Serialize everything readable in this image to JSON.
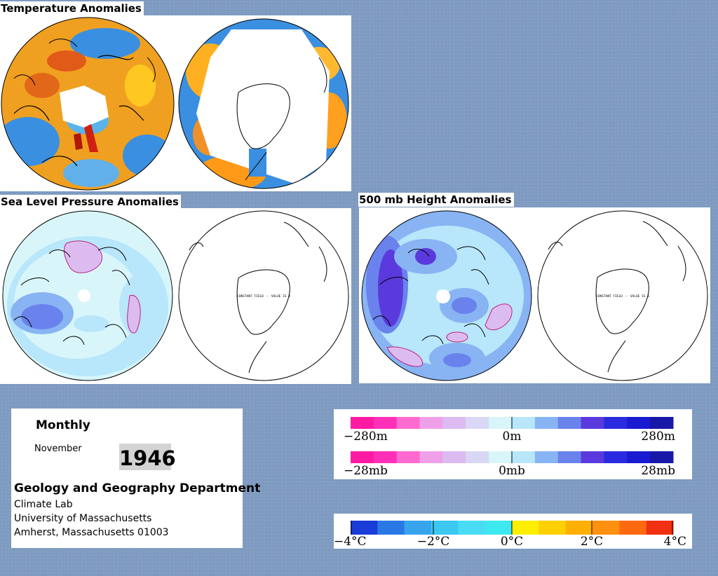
{
  "panels": {
    "temperature": {
      "title": "Temperature Anomalies"
    },
    "slp": {
      "title": "Sea Level Pressure Anomalies",
      "south_note": "CONSTANT FIELD -- VALUE IS 0"
    },
    "height500": {
      "title": "500 mb Height Anomalies",
      "south_note": "CONSTANT FIELD -- VALUE IS 0"
    }
  },
  "info": {
    "period": "Monthly",
    "month": "November",
    "year": "1946",
    "department": "Geology and Geography Department",
    "lines": [
      "Climate Lab",
      "University of Massachusetts",
      "Amherst, Massachusetts 01003"
    ]
  },
  "legends": {
    "height": {
      "min_label": "−280m",
      "mid_label": "0m",
      "max_label": "280m"
    },
    "pressure": {
      "min_label": "−28mb",
      "mid_label": "0mb",
      "max_label": "28mb"
    },
    "temperature": {
      "labels": [
        "−4°C",
        "−2°C",
        "0°C",
        "2°C",
        "4°C"
      ]
    }
  },
  "colors": {
    "page_background": "#7e9ac0",
    "neg_temp": "#3a8fe0",
    "pos_temp": "#f0a020",
    "hot": "#e03010",
    "cool_pink": "#ff1fa0",
    "cool_lavender": "#cbb8ea",
    "neutral_cyan": "#d8f6fa",
    "blue_light": "#8fb8f2",
    "blue_dark": "#2020d0"
  },
  "pressure_scale_colors": [
    "#ff1aa4",
    "#ff2fb8",
    "#ff6ad0",
    "#f0a0e8",
    "#dcbcf0",
    "#d8d8f6",
    "#d8f6fa",
    "#b8e6fa",
    "#88b4f4",
    "#6a82ec",
    "#5a3adc",
    "#2a2ae0",
    "#1a1ad0",
    "#1818a8"
  ],
  "temperature_scale_colors": [
    "#1a3cd8",
    "#2a78e6",
    "#38a4ee",
    "#3cc8f0",
    "#4adcf4",
    "#3ee8f0",
    "#ffee00",
    "#ffd000",
    "#ffb000",
    "#ff9010",
    "#ff6a10",
    "#f03010"
  ]
}
